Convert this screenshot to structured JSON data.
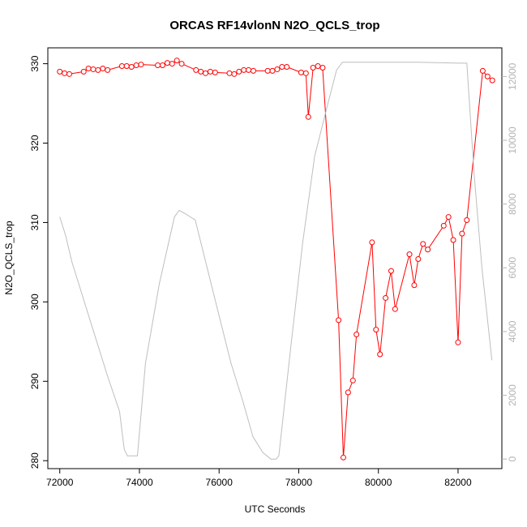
{
  "chart_data": {
    "type": "line",
    "title": "ORCAS RF14vlonN N2O_QCLS_trop",
    "xlabel": "UTC Seconds",
    "ylabel": "N2O_QCLS_trop",
    "xlim": [
      71700,
      83100
    ],
    "ylim": [
      279,
      332
    ],
    "y2lim": [
      -300,
      12900
    ],
    "x_ticks": [
      72000,
      74000,
      76000,
      78000,
      80000,
      82000
    ],
    "y_ticks": [
      280,
      290,
      300,
      310,
      320,
      330
    ],
    "y2_ticks": [
      0,
      2000,
      4000,
      6000,
      8000,
      10000,
      12000
    ],
    "colors": {
      "n2o": "#ff0000",
      "altitude": "#bebebe"
    },
    "series": [
      {
        "axis": "left",
        "style": "line+open-circles",
        "x": [
          72000,
          72120,
          72240,
          72600,
          72720,
          72840,
          72960,
          73080,
          73200,
          73560,
          73680,
          73800,
          73920,
          74040,
          74460,
          74580,
          74700,
          74820,
          74940,
          75060,
          75420,
          75540,
          75660,
          75780,
          75900,
          76260,
          76380,
          76500,
          76620,
          76740,
          76860,
          77220,
          77340,
          77460,
          77580,
          77700,
          78060,
          78180,
          78240,
          78360,
          78480,
          78600,
          79000,
          79120,
          79240,
          79360,
          79450,
          79840,
          79940,
          80040,
          80180,
          80320,
          80420,
          80780,
          80900,
          81000,
          81120,
          81240,
          81640,
          81760,
          81880,
          82000,
          82100,
          82220,
          82620,
          82740,
          82860
        ],
        "values": [
          329.0,
          328.8,
          328.7,
          329.0,
          329.4,
          329.3,
          329.2,
          329.4,
          329.2,
          329.7,
          329.7,
          329.6,
          329.8,
          329.9,
          329.8,
          329.8,
          330.1,
          330.0,
          330.4,
          330.0,
          329.2,
          329.0,
          328.8,
          329.0,
          328.9,
          328.8,
          328.7,
          329.0,
          329.2,
          329.2,
          329.1,
          329.1,
          329.1,
          329.3,
          329.6,
          329.6,
          328.9,
          328.8,
          323.3,
          329.5,
          329.7,
          329.5,
          297.7,
          280.4,
          288.6,
          290.1,
          295.9,
          307.5,
          296.5,
          293.4,
          300.5,
          303.9,
          299.1,
          306.0,
          302.1,
          305.4,
          307.3,
          306.6,
          309.6,
          310.7,
          307.8,
          294.9,
          308.6,
          310.3,
          329.1,
          328.4,
          327.9
        ]
      },
      {
        "axis": "right",
        "style": "line",
        "x": [
          72000,
          72150,
          72300,
          72600,
          72900,
          73200,
          73500,
          73620,
          73700,
          73800,
          73950,
          74150,
          74500,
          74880,
          75000,
          75150,
          75400,
          75700,
          76000,
          76300,
          76600,
          76850,
          77100,
          77300,
          77430,
          77500,
          77800,
          78100,
          78400,
          78700,
          78950,
          79100,
          79250,
          79400,
          80000,
          81000,
          82000,
          82220,
          82400,
          82600,
          82850
        ],
        "values": [
          7600,
          7000,
          6200,
          5000,
          3800,
          2600,
          1500,
          300,
          100,
          100,
          100,
          3000,
          5500,
          7600,
          7800,
          7700,
          7500,
          6000,
          4500,
          3000,
          1800,
          700,
          200,
          0,
          0,
          100,
          3500,
          6800,
          9500,
          11000,
          12200,
          12450,
          12450,
          12450,
          12450,
          12450,
          12420,
          12420,
          9000,
          6000,
          3100
        ]
      }
    ]
  }
}
